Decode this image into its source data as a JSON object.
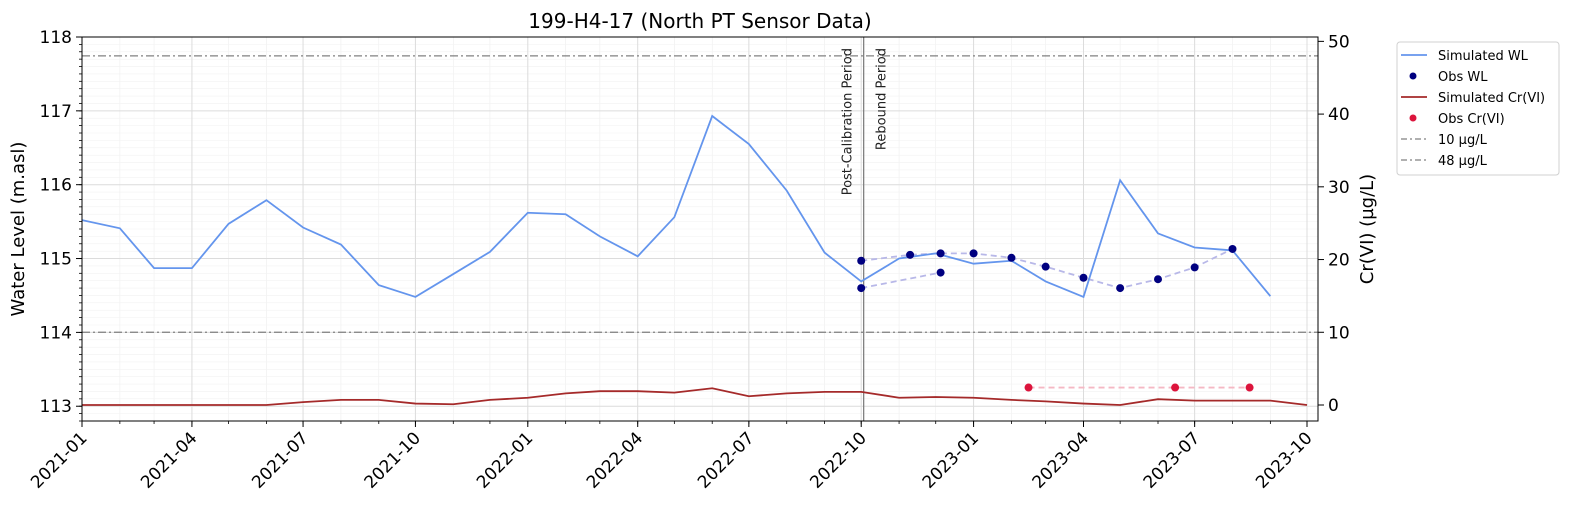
{
  "chart_data": {
    "type": "line",
    "title": "199-H4-17 (North PT Sensor Data)",
    "xlabel": "",
    "ylabel": "Water Level (m.asl)",
    "ylabel_right": "Cr(VI) (µg/L)",
    "xlim": [
      "2021-01-01",
      "2023-10-10"
    ],
    "ylim": [
      112.8,
      118
    ],
    "ylim_right": [
      -2.2,
      50.6
    ],
    "x_ticks": [
      "2021-01",
      "2021-04",
      "2021-07",
      "2021-10",
      "2022-01",
      "2022-04",
      "2022-07",
      "2022-10",
      "2023-01",
      "2023-04",
      "2023-07",
      "2023-10"
    ],
    "y_ticks": [
      "113",
      "114",
      "115",
      "116",
      "117",
      "118"
    ],
    "y_ticks_right": [
      "0",
      "10",
      "20",
      "30",
      "40",
      "50"
    ],
    "grid": true,
    "legend_position": "outside-right",
    "vertical_lines": [
      {
        "x": "2022-10-03",
        "labels": [
          "Post-Calibration Period",
          "Rebound Period"
        ]
      }
    ],
    "series": [
      {
        "name": "Simulated WL",
        "axis": "left",
        "color": "#6495ed",
        "style": "line",
        "x": [
          "2021-01-01",
          "2021-02-01",
          "2021-03-01",
          "2021-04-01",
          "2021-05-01",
          "2021-06-01",
          "2021-07-01",
          "2021-08-01",
          "2021-09-01",
          "2021-10-01",
          "2021-11-01",
          "2021-12-01",
          "2022-01-01",
          "2022-02-01",
          "2022-03-01",
          "2022-04-01",
          "2022-05-01",
          "2022-06-01",
          "2022-07-01",
          "2022-08-01",
          "2022-09-01",
          "2022-10-01",
          "2022-11-01",
          "2022-12-01",
          "2023-01-01",
          "2023-02-01",
          "2023-03-01",
          "2023-04-01",
          "2023-05-01",
          "2023-06-01",
          "2023-07-01",
          "2023-08-01",
          "2023-09-01"
        ],
        "y": [
          115.52,
          115.41,
          114.87,
          114.87,
          115.47,
          115.79,
          115.42,
          115.19,
          114.64,
          114.48,
          114.79,
          115.09,
          115.62,
          115.6,
          115.3,
          115.03,
          115.56,
          116.93,
          116.55,
          115.92,
          115.08,
          114.69,
          115.0,
          115.07,
          114.93,
          114.97,
          114.69,
          114.48,
          116.06,
          115.34,
          115.15,
          115.11,
          114.49
        ]
      },
      {
        "name": "Obs WL",
        "axis": "left",
        "color": "#000080",
        "style": "scatter",
        "x": [
          "2022-10-01",
          "2022-11-10",
          "2022-12-05",
          "2023-01-01",
          "2023-02-01",
          "2023-03-01",
          "2023-04-01",
          "2023-05-01",
          "2023-06-01",
          "2023-07-01",
          "2023-08-01",
          "2022-10-01",
          "2022-12-05"
        ],
        "y": [
          114.97,
          115.05,
          115.07,
          115.07,
          115.01,
          114.89,
          114.74,
          114.6,
          114.72,
          114.88,
          115.13,
          114.6,
          114.81
        ]
      },
      {
        "name": "Simulated Cr(VI)",
        "axis": "right",
        "color": "#a52a2a",
        "style": "line",
        "x": [
          "2021-01-01",
          "2021-02-01",
          "2021-03-01",
          "2021-04-01",
          "2021-05-01",
          "2021-06-01",
          "2021-07-01",
          "2021-08-01",
          "2021-09-01",
          "2021-10-01",
          "2021-11-01",
          "2021-12-01",
          "2022-01-01",
          "2022-02-01",
          "2022-03-01",
          "2022-04-01",
          "2022-05-01",
          "2022-06-01",
          "2022-07-01",
          "2022-08-01",
          "2022-09-01",
          "2022-10-01",
          "2022-11-01",
          "2022-12-01",
          "2023-01-01",
          "2023-02-01",
          "2023-03-01",
          "2023-04-01",
          "2023-05-01",
          "2023-06-01",
          "2023-07-01",
          "2023-08-01",
          "2023-09-01",
          "2023-10-01"
        ],
        "y": [
          0.0,
          0.0,
          0.0,
          0.0,
          0.0,
          0.0,
          0.4,
          0.7,
          0.7,
          0.2,
          0.1,
          0.7,
          1.0,
          1.6,
          1.9,
          1.9,
          1.7,
          2.3,
          1.2,
          1.6,
          1.8,
          1.8,
          1.0,
          1.1,
          1.0,
          0.7,
          0.5,
          0.2,
          0.0,
          0.8,
          0.6,
          0.6,
          0.6,
          0.0
        ]
      },
      {
        "name": "Obs Cr(VI)",
        "axis": "right",
        "color": "#dc143c",
        "style": "scatter",
        "x": [
          "2023-02-15",
          "2023-06-15",
          "2023-08-15"
        ],
        "y": [
          2.4,
          2.4,
          2.4
        ]
      },
      {
        "name": "10 µg/L",
        "axis": "right",
        "color": "#808080",
        "style": "hline",
        "y": 10
      },
      {
        "name": "48 µg/L",
        "axis": "right",
        "color": "#808080",
        "style": "hline",
        "y": 48
      }
    ]
  }
}
